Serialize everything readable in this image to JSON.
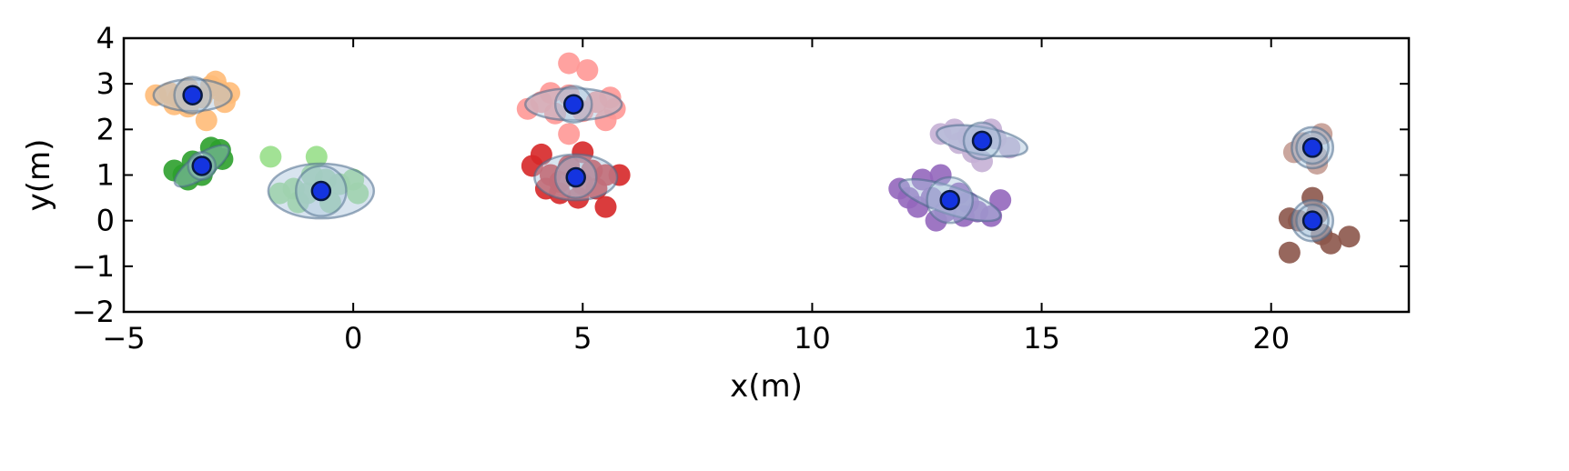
{
  "chart_data": {
    "type": "scatter",
    "xlabel": "x(m)",
    "ylabel": "y(m)",
    "xlim": [
      -5,
      23
    ],
    "ylim": [
      -2,
      4
    ],
    "x_ticks": [
      -5,
      0,
      5,
      10,
      15,
      20
    ],
    "y_ticks": [
      -2,
      -1,
      0,
      1,
      2,
      3,
      4
    ],
    "x_tick_labels": [
      "−5",
      "0",
      "5",
      "10",
      "15",
      "20"
    ],
    "y_tick_labels": [
      "−2",
      "−1",
      "0",
      "1",
      "2",
      "3",
      "4"
    ],
    "grid": false,
    "legend": "none",
    "center_color": "#1434e0",
    "ellipse_color": "#a8c4dc",
    "clusters": [
      {
        "color": "#ffbb78",
        "center": [
          -3.5,
          2.75
        ],
        "ellipse": {
          "rx": 0.85,
          "ry": 0.35,
          "angle": 0
        },
        "circle_r": 0.4,
        "points": [
          [
            -4.3,
            2.75
          ],
          [
            -4.0,
            2.8
          ],
          [
            -3.8,
            2.7
          ],
          [
            -3.6,
            2.9
          ],
          [
            -3.3,
            2.7
          ],
          [
            -3.1,
            2.95
          ],
          [
            -2.9,
            2.85
          ],
          [
            -2.8,
            2.6
          ],
          [
            -3.2,
            2.2
          ],
          [
            -3.6,
            2.5
          ],
          [
            -3.9,
            2.55
          ],
          [
            -3.0,
            3.05
          ],
          [
            -2.7,
            2.8
          ]
        ]
      },
      {
        "color": "#2ca02c",
        "center": [
          -3.3,
          1.2
        ],
        "ellipse": {
          "rx": 0.7,
          "ry": 0.25,
          "angle": 35
        },
        "circle_r": 0.3,
        "points": [
          [
            -3.9,
            1.1
          ],
          [
            -3.7,
            1.0
          ],
          [
            -3.5,
            1.3
          ],
          [
            -3.2,
            1.2
          ],
          [
            -3.0,
            1.4
          ],
          [
            -2.9,
            1.55
          ],
          [
            -3.3,
            1.0
          ],
          [
            -3.6,
            0.9
          ],
          [
            -2.85,
            1.35
          ],
          [
            -3.1,
            1.6
          ]
        ]
      },
      {
        "color": "#98df8a",
        "center": [
          -0.7,
          0.65
        ],
        "ellipse": {
          "rx": 1.15,
          "ry": 0.6,
          "angle": 0
        },
        "circle_r": 0.55,
        "points": [
          [
            -1.8,
            1.4
          ],
          [
            -1.6,
            0.6
          ],
          [
            -1.3,
            0.7
          ],
          [
            -1.0,
            0.6
          ],
          [
            -0.8,
            1.4
          ],
          [
            -0.5,
            0.4
          ],
          [
            -0.3,
            0.8
          ],
          [
            0.0,
            0.9
          ],
          [
            0.1,
            0.6
          ],
          [
            -0.9,
            1.0
          ],
          [
            -1.2,
            0.4
          ],
          [
            -0.6,
            0.9
          ]
        ]
      },
      {
        "color": "#ff9896",
        "center": [
          4.8,
          2.55
        ],
        "ellipse": {
          "rx": 1.05,
          "ry": 0.35,
          "angle": 0
        },
        "circle_r": 0.4,
        "points": [
          [
            3.8,
            2.45
          ],
          [
            4.1,
            2.6
          ],
          [
            4.4,
            2.35
          ],
          [
            4.7,
            2.75
          ],
          [
            5.0,
            2.4
          ],
          [
            5.3,
            2.6
          ],
          [
            5.6,
            2.7
          ],
          [
            5.7,
            2.45
          ],
          [
            4.7,
            3.45
          ],
          [
            5.1,
            3.3
          ],
          [
            4.7,
            1.9
          ],
          [
            5.5,
            2.2
          ],
          [
            4.3,
            2.8
          ]
        ]
      },
      {
        "color": "#d62728",
        "center": [
          4.85,
          0.95
        ],
        "ellipse": {
          "rx": 0.9,
          "ry": 0.5,
          "angle": 0
        },
        "circle_r": 0.45,
        "points": [
          [
            3.9,
            1.2
          ],
          [
            4.1,
            1.45
          ],
          [
            4.3,
            1.0
          ],
          [
            4.5,
            0.85
          ],
          [
            4.7,
            1.2
          ],
          [
            5.0,
            0.8
          ],
          [
            5.2,
            1.1
          ],
          [
            5.5,
            1.0
          ],
          [
            5.8,
            1.0
          ],
          [
            5.5,
            0.3
          ],
          [
            4.5,
            0.6
          ],
          [
            4.9,
            0.5
          ],
          [
            5.0,
            1.5
          ],
          [
            4.2,
            0.7
          ],
          [
            5.3,
            0.7
          ]
        ]
      },
      {
        "color": "#c5b0d5",
        "center": [
          13.7,
          1.75
        ],
        "ellipse": {
          "rx": 1.0,
          "ry": 0.3,
          "angle": -10
        },
        "circle_r": 0.4,
        "points": [
          [
            12.8,
            1.9
          ],
          [
            13.1,
            2.0
          ],
          [
            13.4,
            1.85
          ],
          [
            13.7,
            1.9
          ],
          [
            14.0,
            1.8
          ],
          [
            14.3,
            1.6
          ],
          [
            13.5,
            1.5
          ],
          [
            13.7,
            1.3
          ],
          [
            13.2,
            1.7
          ],
          [
            13.9,
            2.0
          ]
        ]
      },
      {
        "color": "#9467bd",
        "center": [
          13.0,
          0.45
        ],
        "ellipse": {
          "rx": 1.15,
          "ry": 0.3,
          "angle": -18
        },
        "circle_r": 0.5,
        "points": [
          [
            11.9,
            0.7
          ],
          [
            12.1,
            0.5
          ],
          [
            12.4,
            0.9
          ],
          [
            12.6,
            0.5
          ],
          [
            12.8,
            1.0
          ],
          [
            12.9,
            0.2
          ],
          [
            12.7,
            0.0
          ],
          [
            13.2,
            0.6
          ],
          [
            13.4,
            0.4
          ],
          [
            13.6,
            0.2
          ],
          [
            13.9,
            0.1
          ],
          [
            14.1,
            0.45
          ],
          [
            12.3,
            0.3
          ],
          [
            13.3,
            0.1
          ]
        ]
      },
      {
        "color": "#c49c94",
        "center": [
          20.9,
          1.6
        ],
        "ellipse": {
          "rx": 0.45,
          "ry": 0.45,
          "angle": 0
        },
        "circle_r": 0.35,
        "points": [
          [
            20.5,
            1.5
          ],
          [
            20.7,
            1.7
          ],
          [
            21.0,
            1.4
          ],
          [
            21.1,
            1.9
          ],
          [
            21.0,
            1.25
          ],
          [
            20.8,
            1.55
          ]
        ]
      },
      {
        "color": "#8c564b",
        "center": [
          20.9,
          0.0
        ],
        "ellipse": {
          "rx": 0.45,
          "ry": 0.45,
          "angle": 0
        },
        "circle_r": 0.35,
        "points": [
          [
            20.4,
            0.05
          ],
          [
            20.6,
            0.0
          ],
          [
            20.9,
            0.5
          ],
          [
            21.1,
            -0.3
          ],
          [
            21.3,
            -0.5
          ],
          [
            21.7,
            -0.35
          ],
          [
            20.4,
            -0.7
          ],
          [
            21.0,
            0.15
          ]
        ]
      }
    ]
  }
}
